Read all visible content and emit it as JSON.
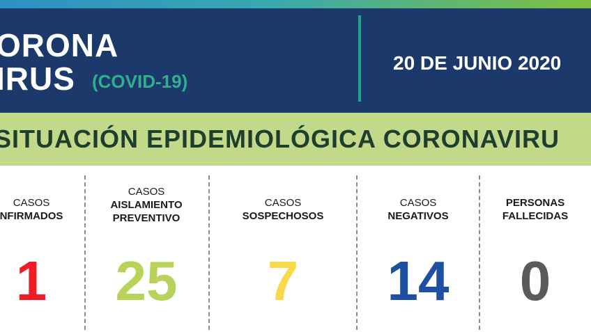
{
  "header": {
    "title_line1": "ORONA",
    "title_line2": "IRUS",
    "subtitle": "(COVID-19)",
    "date": "20 DE JUNIO  2020"
  },
  "band": {
    "text": "SITUACIÓN EPIDEMIOLÓGICA CORONAVIRU"
  },
  "stats": [
    {
      "label_top": "CASOS",
      "label_bold": "NFIRMADOS",
      "value": "1",
      "color": "#ee1c25"
    },
    {
      "label_top": "CASOS",
      "label_bold": "AISLAMIENTO",
      "label_bold2": "PREVENTIVO",
      "value": "25",
      "color": "#b8d25a"
    },
    {
      "label_top": "CASOS",
      "label_bold": "SOSPECHOSOS",
      "value": "7",
      "color": "#f9d84a"
    },
    {
      "label_top": "CASOS",
      "label_bold": "NEGATIVOS",
      "value": "14",
      "color": "#1f4fa0"
    },
    {
      "label_bold": "PERSONAS",
      "label_bold2": "FALLECIDAS",
      "value": "0",
      "color": "#5a5a5a"
    }
  ]
}
